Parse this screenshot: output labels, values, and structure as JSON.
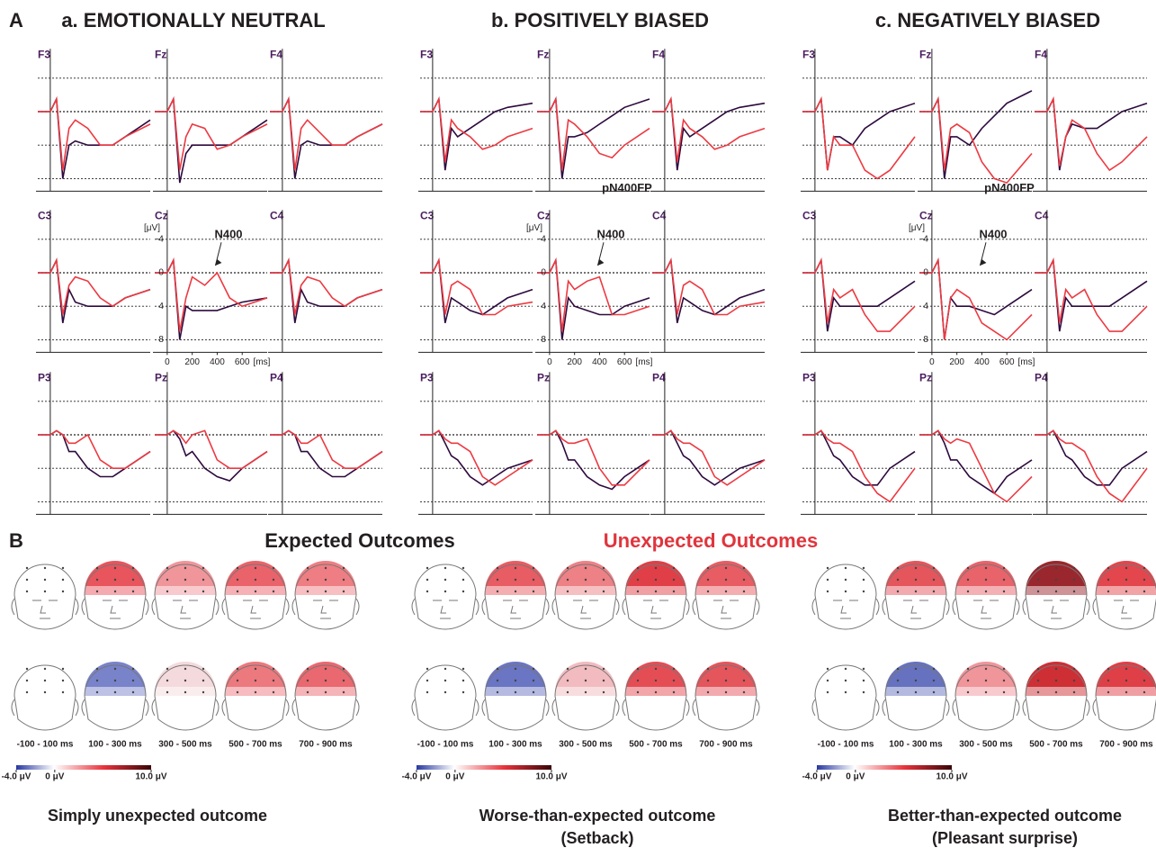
{
  "panel_a_label": "A",
  "panel_b_label": "B",
  "time_ms": [
    -100,
    0,
    50,
    100,
    150,
    200,
    300,
    400,
    500,
    600,
    800
  ],
  "xlim": [
    -100,
    800
  ],
  "ylim": [
    -7.5,
    9.5
  ],
  "y_inverted": true,
  "yticks": [
    -4,
    0,
    4,
    8
  ],
  "xticks": [
    0,
    200,
    400,
    600
  ],
  "x_unit": "[ms]",
  "y_unit": "[μV]",
  "legend": [
    {
      "name": "Expected Outcomes",
      "text_color": "#231f20",
      "line_color": "#2d0a3e"
    },
    {
      "name": "Unexpected Outcomes",
      "text_color": "#e0353d",
      "line_color": "#ec3a42"
    }
  ],
  "panels": [
    {
      "title": "a. EMOTIONALLY NEUTRAL",
      "n400": "N400",
      "rows": [
        {
          "electrodes": [
            "F3",
            "Fz",
            "F4"
          ],
          "plots": [
            {
              "expected": [
                0,
                0,
                -1.5,
                8,
                4,
                3.5,
                4,
                4,
                4,
                3,
                1
              ],
              "unexpected": [
                0,
                0,
                -1.5,
                7,
                2,
                1,
                2,
                4,
                4,
                3,
                1.5
              ]
            },
            {
              "expected": [
                0,
                0,
                -1.5,
                8.5,
                5,
                4,
                4,
                4,
                4,
                3,
                1
              ],
              "unexpected": [
                0,
                0,
                -1.5,
                7,
                3,
                1.5,
                2,
                4.5,
                4,
                3,
                1.5
              ]
            },
            {
              "expected": [
                0,
                0,
                -1.5,
                8,
                4,
                3.5,
                4,
                4,
                4,
                3,
                1.5
              ],
              "unexpected": [
                0,
                0,
                -1.5,
                7,
                2,
                1,
                2.5,
                4,
                4,
                3,
                1.5
              ]
            }
          ]
        },
        {
          "electrodes": [
            "C3",
            "Cz",
            "C4"
          ],
          "plots": [
            {
              "expected": [
                0,
                0,
                -1.5,
                6,
                2,
                3.5,
                4,
                4,
                4,
                3,
                2
              ],
              "unexpected": [
                0,
                0,
                -1.5,
                5,
                1.5,
                0.5,
                1,
                3,
                4,
                3,
                2
              ]
            },
            {
              "expected": [
                0,
                0,
                -1.5,
                8,
                4,
                4.5,
                4.5,
                4.5,
                4,
                3.5,
                3
              ],
              "unexpected": [
                0,
                0,
                -1.5,
                7,
                3,
                0.5,
                1.5,
                0,
                3,
                4,
                3
              ]
            },
            {
              "expected": [
                0,
                0,
                -1.5,
                6,
                2,
                3.5,
                4,
                4,
                4,
                3,
                2
              ],
              "unexpected": [
                0,
                0,
                -1.5,
                5,
                1.5,
                0.5,
                1,
                3,
                4,
                3,
                2
              ]
            }
          ]
        },
        {
          "electrodes": [
            "P3",
            "Pz",
            "P4"
          ],
          "plots": [
            {
              "expected": [
                0,
                0,
                -0.5,
                0,
                2,
                2,
                4,
                5,
                5,
                4,
                2
              ],
              "unexpected": [
                0,
                0,
                -0.5,
                0,
                1,
                1,
                0,
                3,
                4,
                4,
                2
              ]
            },
            {
              "expected": [
                0,
                0,
                -0.5,
                0.5,
                2.5,
                2,
                4,
                5,
                5.5,
                4,
                2
              ],
              "unexpected": [
                0,
                0,
                -0.5,
                0,
                1,
                0,
                -0.5,
                3,
                4,
                4,
                2
              ]
            },
            {
              "expected": [
                0,
                0,
                -0.5,
                0,
                2,
                2,
                4,
                5,
                5,
                4,
                2
              ],
              "unexpected": [
                0,
                0,
                -0.5,
                0,
                1,
                1,
                0,
                3,
                4,
                4,
                2
              ]
            }
          ]
        }
      ]
    },
    {
      "title": "b. POSITIVELY BIASED",
      "n400": "N400",
      "pn400": "pN400FP",
      "rows": [
        {
          "electrodes": [
            "F3",
            "Fz",
            "F4"
          ],
          "plots": [
            {
              "expected": [
                0,
                0,
                -1.5,
                7,
                2,
                3,
                2,
                1,
                0,
                -0.5,
                -1
              ],
              "unexpected": [
                0,
                0,
                -1.5,
                6,
                1,
                2,
                3,
                4.5,
                4,
                3,
                2
              ]
            },
            {
              "expected": [
                0,
                0,
                -1.5,
                8,
                3,
                3,
                2.5,
                1.5,
                0.5,
                -0.5,
                -1.5
              ],
              "unexpected": [
                0,
                0,
                -1.5,
                7,
                1,
                1.5,
                3,
                5,
                5.5,
                4,
                2
              ]
            },
            {
              "expected": [
                0,
                0,
                -1.5,
                7,
                2,
                3,
                2,
                1,
                0,
                -0.5,
                -1
              ],
              "unexpected": [
                0,
                0,
                -1.5,
                6,
                1,
                2,
                3,
                4.5,
                4,
                3,
                2
              ]
            }
          ]
        },
        {
          "electrodes": [
            "C3",
            "Cz",
            "C4"
          ],
          "plots": [
            {
              "expected": [
                0,
                0,
                -1.5,
                6,
                3,
                3.5,
                4.5,
                5,
                4,
                3,
                2
              ],
              "unexpected": [
                0,
                0,
                -1.5,
                5,
                1.5,
                1,
                2,
                5,
                5,
                4,
                3.5
              ]
            },
            {
              "expected": [
                0,
                0,
                -1.5,
                8,
                3,
                4,
                4.5,
                5,
                5,
                4,
                3
              ],
              "unexpected": [
                0,
                0,
                -1.5,
                7,
                1,
                2,
                1,
                0.5,
                5,
                5,
                4
              ]
            },
            {
              "expected": [
                0,
                0,
                -1.5,
                6,
                3,
                3.5,
                4.5,
                5,
                4,
                3,
                2
              ],
              "unexpected": [
                0,
                0,
                -1.5,
                5,
                1.5,
                1,
                2,
                5,
                5,
                4,
                3.5
              ]
            }
          ]
        },
        {
          "electrodes": [
            "P3",
            "Pz",
            "P4"
          ],
          "plots": [
            {
              "expected": [
                0,
                0,
                -0.5,
                1,
                2.5,
                3,
                5,
                6,
                5,
                4,
                3
              ],
              "unexpected": [
                0,
                0,
                -0.5,
                0.5,
                1,
                1,
                2,
                5,
                6,
                5,
                3
              ]
            },
            {
              "expected": [
                0,
                0,
                -0.5,
                1,
                3,
                3,
                5,
                6,
                6.5,
                5,
                3
              ],
              "unexpected": [
                0,
                0,
                -0.5,
                0.5,
                1,
                1,
                0.5,
                4,
                6,
                6,
                3
              ]
            },
            {
              "expected": [
                0,
                0,
                -0.5,
                1,
                2.5,
                3,
                5,
                6,
                5,
                4,
                3
              ],
              "unexpected": [
                0,
                0,
                -0.5,
                0.5,
                1,
                1,
                2,
                5,
                6,
                5,
                3
              ]
            }
          ]
        }
      ]
    },
    {
      "title": "c. NEGATIVELY BIASED",
      "n400": "N400",
      "pn400": "pN400FP",
      "rows": [
        {
          "electrodes": [
            "F3",
            "Fz",
            "F4"
          ],
          "plots": [
            {
              "expected": [
                0,
                0,
                -1.5,
                7,
                3,
                3,
                4,
                2,
                1,
                0,
                -1
              ],
              "unexpected": [
                0,
                0,
                -1.5,
                7,
                3,
                4,
                4,
                7,
                8,
                7,
                3
              ]
            },
            {
              "expected": [
                0,
                0,
                -1.5,
                8,
                3,
                3,
                4,
                2,
                0.5,
                -1,
                -2.5
              ],
              "unexpected": [
                0,
                0,
                -1.5,
                7,
                2,
                1.5,
                2.5,
                6,
                8,
                8.5,
                5
              ]
            },
            {
              "expected": [
                0,
                0,
                -1.5,
                7,
                3,
                1.5,
                2,
                2,
                1,
                0,
                -1
              ],
              "unexpected": [
                0,
                0,
                -1.5,
                6.5,
                3,
                1,
                2,
                5,
                7,
                6,
                3
              ]
            }
          ]
        },
        {
          "electrodes": [
            "C3",
            "Cz",
            "C4"
          ],
          "plots": [
            {
              "expected": [
                0,
                0,
                -1.5,
                7,
                3,
                4,
                4,
                4,
                4,
                3,
                1
              ],
              "unexpected": [
                0,
                0,
                -1.5,
                6,
                2,
                3,
                2,
                5,
                7,
                7,
                4
              ]
            },
            {
              "expected": [
                0,
                0,
                -1.5,
                8,
                3,
                4,
                4,
                4.5,
                5,
                4,
                2
              ],
              "unexpected": [
                0,
                0,
                -1.5,
                8,
                3,
                2,
                3,
                6,
                7,
                8,
                5
              ]
            },
            {
              "expected": [
                0,
                0,
                -1.5,
                7,
                3,
                4,
                4,
                4,
                4,
                3,
                1
              ],
              "unexpected": [
                0,
                0,
                -1.5,
                6,
                2,
                3,
                2,
                5,
                7,
                7,
                4
              ]
            }
          ]
        },
        {
          "electrodes": [
            "P3",
            "Pz",
            "P4"
          ],
          "plots": [
            {
              "expected": [
                0,
                0,
                -0.5,
                1,
                2.5,
                3,
                5,
                6,
                6,
                4,
                2
              ],
              "unexpected": [
                0,
                0,
                -0.5,
                0.5,
                1,
                1,
                2,
                5,
                7,
                8,
                4
              ]
            },
            {
              "expected": [
                0,
                0,
                -0.5,
                1,
                3,
                3,
                5,
                6,
                7,
                5,
                3
              ],
              "unexpected": [
                0,
                0,
                -0.5,
                0.5,
                1,
                0.5,
                1,
                4,
                7,
                8,
                5
              ]
            },
            {
              "expected": [
                0,
                0,
                -0.5,
                1,
                2.5,
                3,
                5,
                6,
                6,
                4,
                2
              ],
              "unexpected": [
                0,
                0,
                -0.5,
                0.5,
                1,
                1,
                2,
                5,
                7,
                8,
                4
              ]
            }
          ]
        }
      ]
    }
  ],
  "topo_time_labels": [
    "-100 - 100 ms",
    "100 - 300 ms",
    "300 - 500 ms",
    "500 - 700 ms",
    "700 - 900 ms"
  ],
  "colorbar": {
    "lim": [
      -4,
      10
    ],
    "ticks": [
      {
        "value": -4,
        "label": "-4.0 μV"
      },
      {
        "value": 0,
        "label": "0 μV"
      },
      {
        "value": 10,
        "label": "10.0 μV"
      }
    ]
  },
  "captions": [
    [
      "Simply unexpected outcome"
    ],
    [
      "Worse-than-expected outcome",
      "(Setback)"
    ],
    [
      "Better-than-expected outcome",
      "(Pleasant surprise)"
    ]
  ]
}
